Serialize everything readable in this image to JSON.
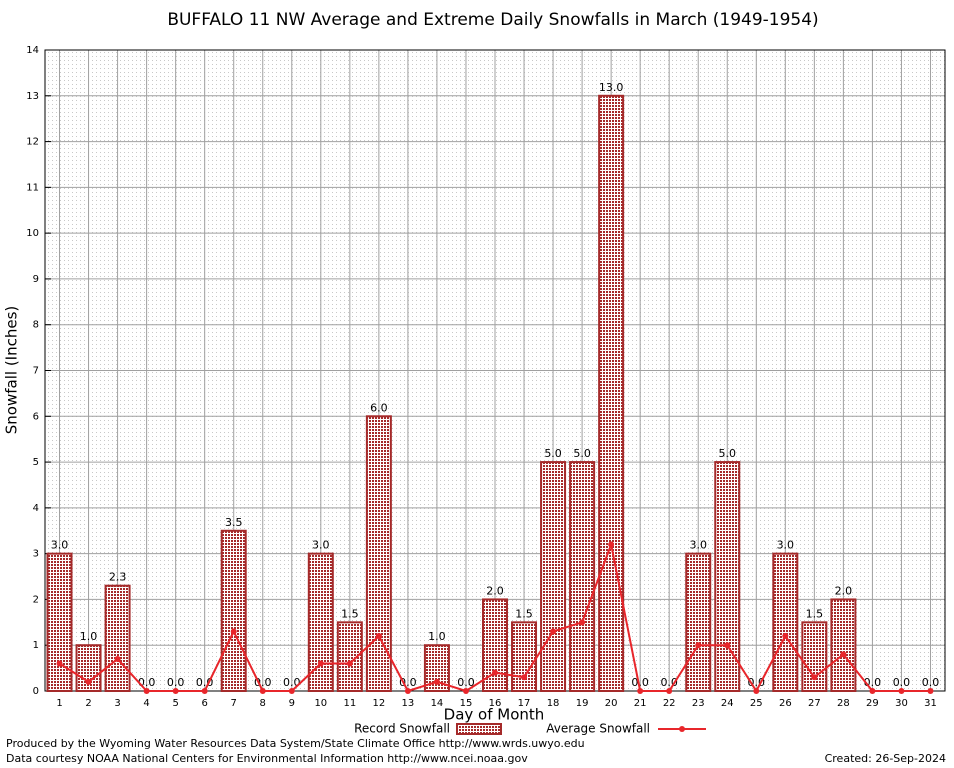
{
  "chart_data": {
    "type": "bar",
    "title": "BUFFALO 11 NW Average and Extreme Daily Snowfalls in March (1949-1954)",
    "xlabel": "Day of Month",
    "ylabel": "Snowfall (Inches)",
    "categories": [
      "1",
      "2",
      "3",
      "4",
      "5",
      "6",
      "7",
      "8",
      "9",
      "10",
      "11",
      "12",
      "13",
      "14",
      "15",
      "16",
      "17",
      "18",
      "19",
      "20",
      "21",
      "22",
      "23",
      "24",
      "25",
      "26",
      "27",
      "28",
      "29",
      "30",
      "31"
    ],
    "series": [
      {
        "name": "Record Snowfall",
        "type": "bar",
        "color": "#a52a2a",
        "values": [
          3.0,
          1.0,
          2.3,
          0,
          0,
          0,
          3.5,
          0,
          0,
          3.0,
          1.5,
          6.0,
          0,
          1.0,
          0,
          2.0,
          1.5,
          5.0,
          5.0,
          13.0,
          0,
          0,
          3.0,
          5.0,
          0,
          3.0,
          1.5,
          2.0,
          0,
          0,
          0
        ],
        "value_labels": [
          "3.0",
          "1.0",
          "2.3",
          "0.0",
          "0.0",
          "0.0",
          "3.5",
          "0.0",
          "0.0",
          "3.0",
          "1.5",
          "6.0",
          "0.0",
          "1.0",
          "0.0",
          "2.0",
          "1.5",
          "5.0",
          "5.0",
          "13.0",
          "0.0",
          "0.0",
          "3.0",
          "5.0",
          "0.0",
          "3.0",
          "1.5",
          "2.0",
          "0.0",
          "0.0",
          "0.0"
        ]
      },
      {
        "name": "Average Snowfall",
        "type": "line",
        "color": "#e8262b",
        "values": [
          0.6,
          0.2,
          0.7,
          0,
          0,
          0,
          1.3,
          0,
          0,
          0.6,
          0.6,
          1.2,
          0,
          0.2,
          0,
          0.4,
          0.3,
          1.3,
          1.5,
          3.2,
          0,
          0,
          1.0,
          1.0,
          0,
          1.2,
          0.3,
          0.8,
          0,
          0,
          0
        ]
      }
    ],
    "ylim": [
      0,
      14
    ],
    "yticks": [
      0,
      1,
      2,
      3,
      4,
      5,
      6,
      7,
      8,
      9,
      10,
      11,
      12,
      13,
      14
    ],
    "grid": true
  },
  "footer": {
    "left": [
      "Produced by the Wyoming Water Resources Data System/State Climate Office http://www.wrds.uwyo.edu",
      "Data courtesy NOAA National Centers for Environmental Information http://www.ncei.noaa.gov"
    ],
    "right": "Created:  26-Sep-2024"
  }
}
